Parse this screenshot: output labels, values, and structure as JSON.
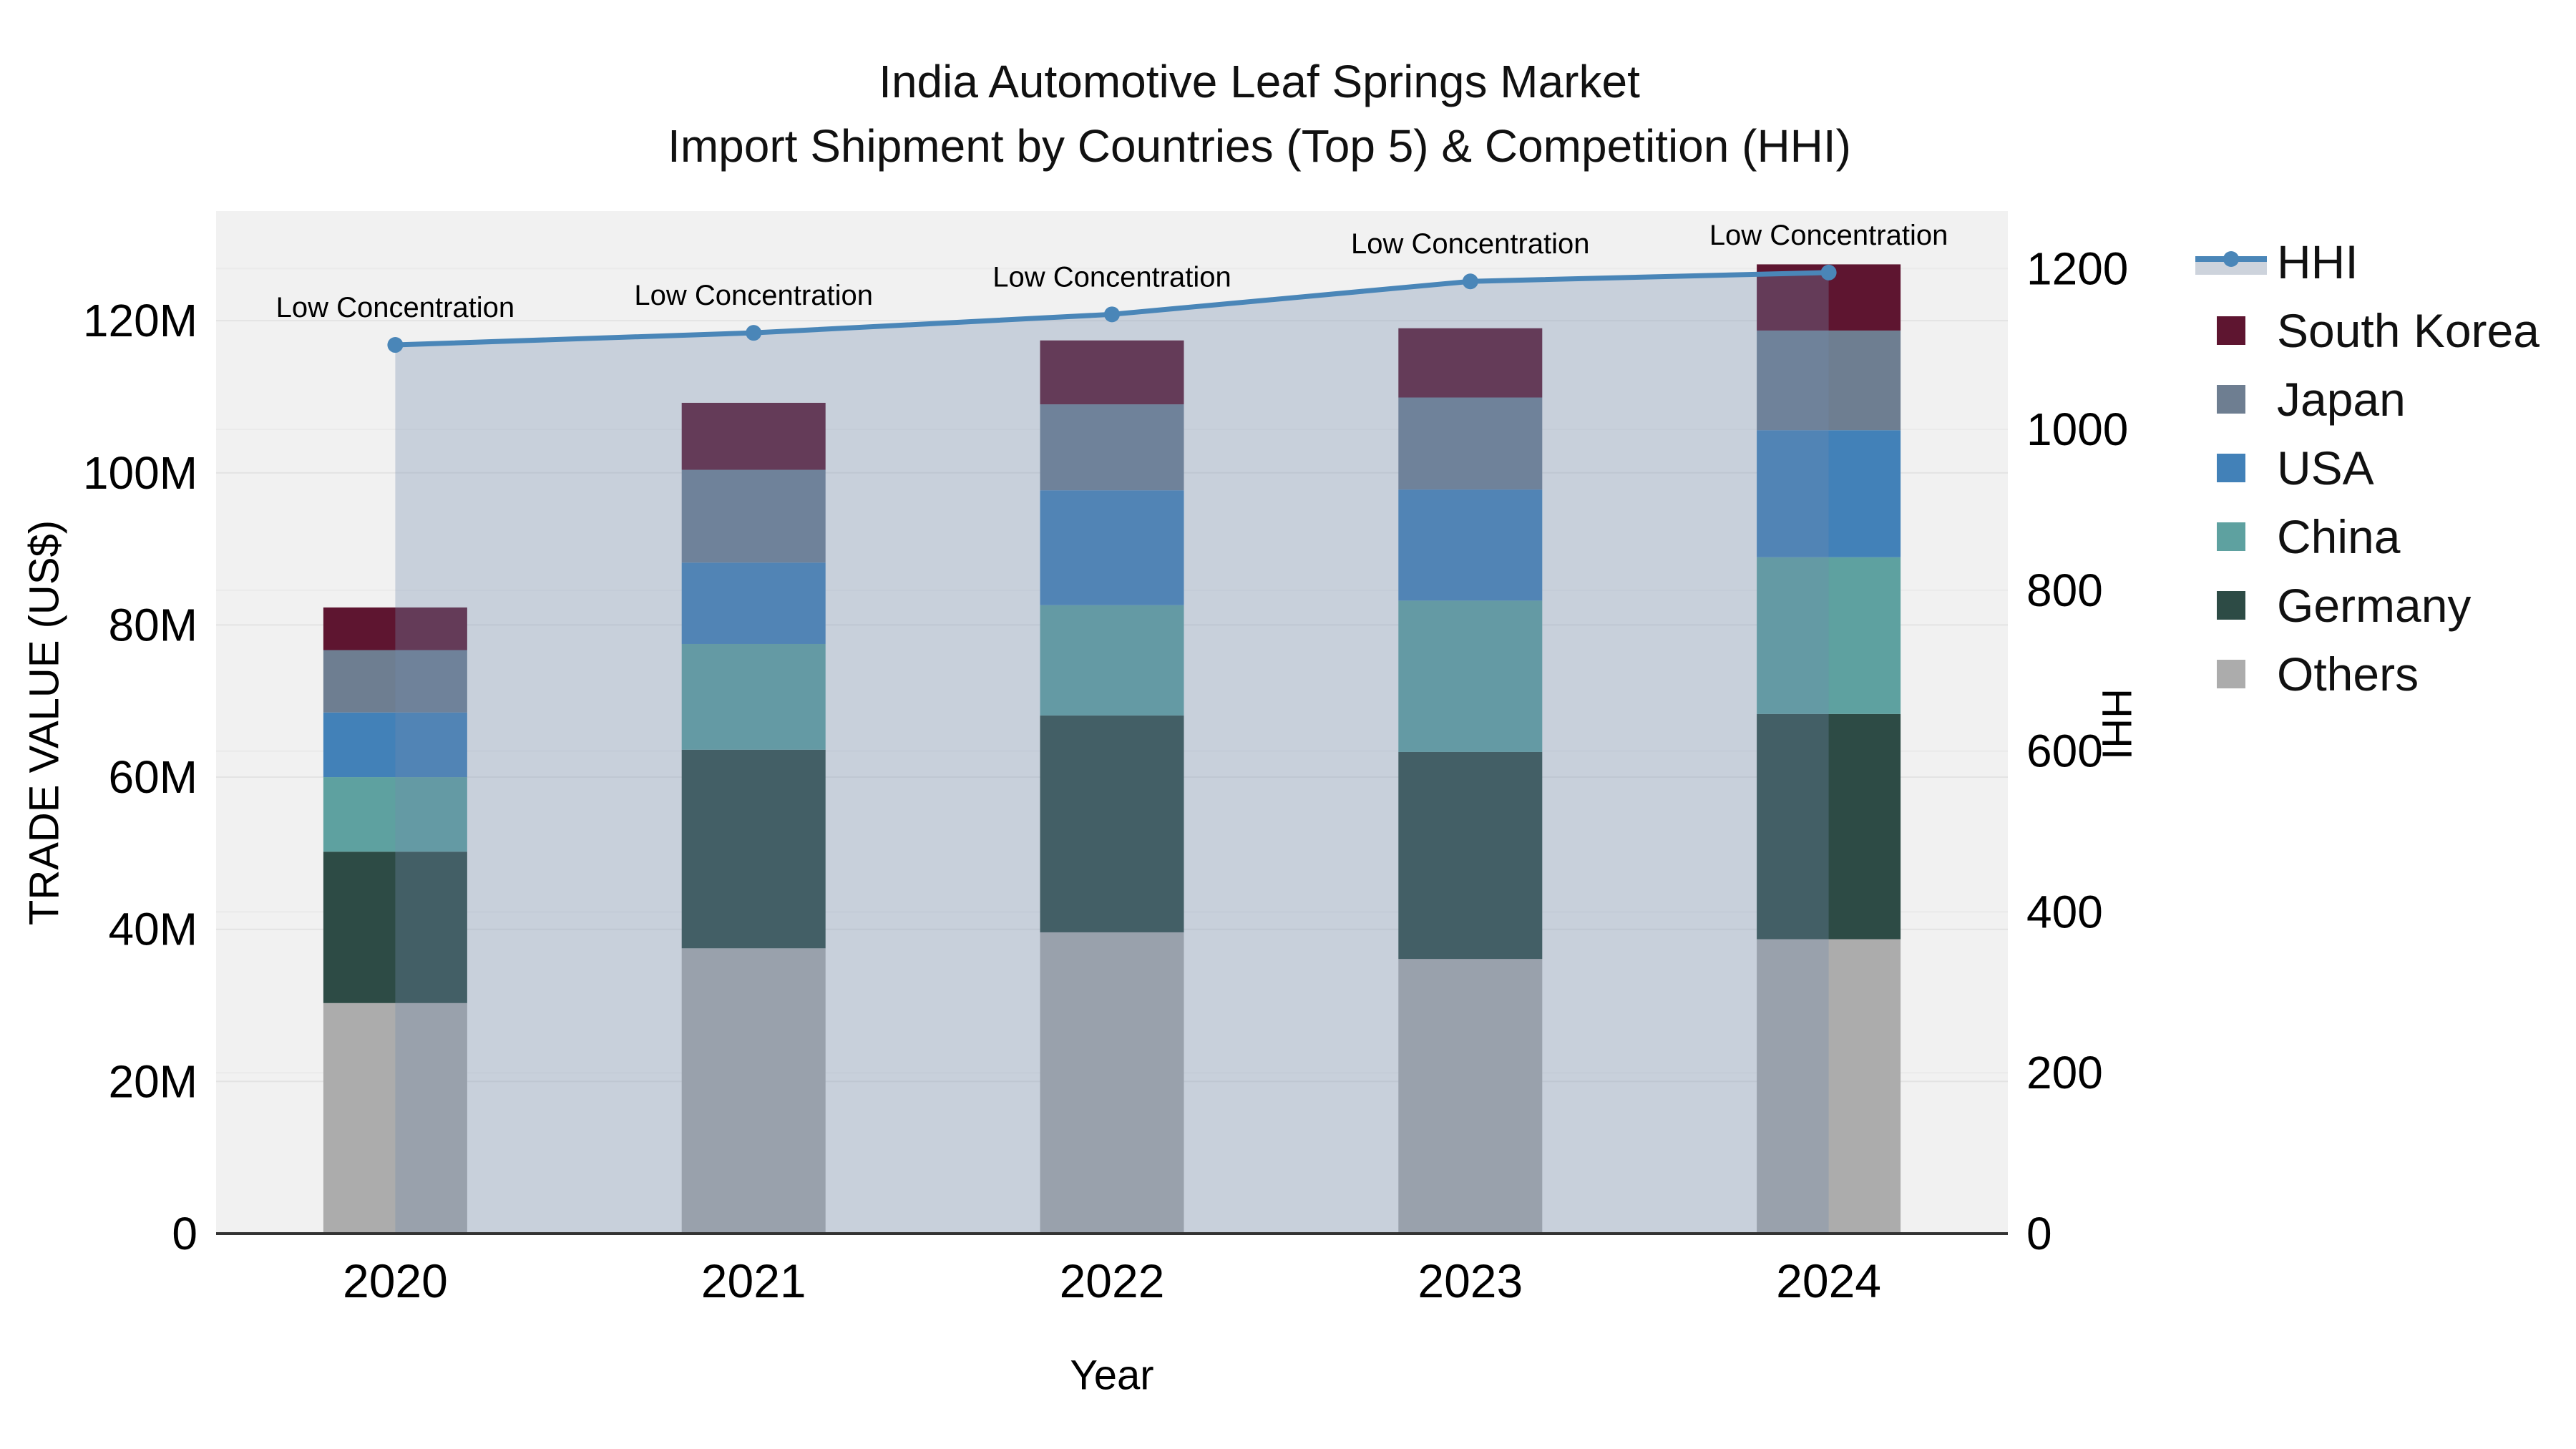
{
  "title": {
    "line1": "India Automotive Leaf Springs Market",
    "line2": "Import Shipment by Countries (Top 5) & Competition (HHI)"
  },
  "axes": {
    "x": {
      "title": "Year",
      "tick_labels": [
        "2020",
        "2021",
        "2022",
        "2023",
        "2024"
      ]
    },
    "y_left": {
      "title": "TRADE VALUE (US$)",
      "tick_labels": [
        "0",
        "20M",
        "40M",
        "60M",
        "80M",
        "100M",
        "120M"
      ],
      "tick_values_m": [
        0,
        20,
        40,
        60,
        80,
        100,
        120
      ]
    },
    "y_right": {
      "title": "HHI",
      "tick_labels": [
        "0",
        "200",
        "400",
        "600",
        "800",
        "1000",
        "1200"
      ],
      "tick_values": [
        0,
        200,
        400,
        600,
        800,
        1000,
        1200
      ]
    }
  },
  "chart_data": {
    "type": "bar+line",
    "categories": [
      "2020",
      "2021",
      "2022",
      "2023",
      "2024"
    ],
    "bar_unit": "million US$",
    "stack_order_bottom_to_top": [
      "Others",
      "Germany",
      "China",
      "USA",
      "Japan",
      "South Korea"
    ],
    "series": [
      {
        "name": "Others",
        "color": "#acacac",
        "values": [
          30.3,
          37.5,
          39.6,
          36.1,
          38.7
        ]
      },
      {
        "name": "Germany",
        "color": "#2d4b45",
        "values": [
          19.9,
          26.1,
          28.5,
          27.2,
          29.6
        ]
      },
      {
        "name": "China",
        "color": "#5ea1a0",
        "values": [
          9.8,
          13.9,
          14.5,
          19.9,
          20.6
        ]
      },
      {
        "name": "USA",
        "color": "#4281b8",
        "values": [
          8.5,
          10.7,
          15.1,
          14.6,
          16.7
        ]
      },
      {
        "name": "Japan",
        "color": "#6e7e91",
        "values": [
          8.2,
          12.2,
          11.3,
          12.1,
          13.1
        ]
      },
      {
        "name": "South Korea",
        "color": "#5e1530",
        "values": [
          5.6,
          8.8,
          8.4,
          9.1,
          8.7
        ]
      }
    ],
    "bar_totals_m": [
      82.3,
      109.2,
      117.4,
      119.0,
      127.4
    ],
    "line_series": {
      "name": "HHI",
      "color": "#4a86b8",
      "area_fill_color": "rgba(116,141,175,0.32)",
      "values": [
        1105,
        1120,
        1143,
        1184,
        1195
      ]
    },
    "annotations": [
      "Low Concentration",
      "Low Concentration",
      "Low Concentration",
      "Low Concentration",
      "Low Concentration"
    ],
    "ylim_left_m": [
      0,
      134.4
    ],
    "ylim_right": [
      0,
      1271.4
    ],
    "grid": true,
    "legend_position": "right"
  },
  "legend": {
    "items": [
      {
        "label": "HHI",
        "type": "line",
        "color": "#4a86b8"
      },
      {
        "label": "South Korea",
        "type": "swatch",
        "color": "#5e1530"
      },
      {
        "label": "Japan",
        "type": "swatch",
        "color": "#6e7e91"
      },
      {
        "label": "USA",
        "type": "swatch",
        "color": "#4281b8"
      },
      {
        "label": "China",
        "type": "swatch",
        "color": "#5ea1a0"
      },
      {
        "label": "Germany",
        "type": "swatch",
        "color": "#2d4b45"
      },
      {
        "label": "Others",
        "type": "swatch",
        "color": "#acacac"
      }
    ]
  },
  "colors": {
    "plot_background": "#f1f1f1",
    "grid_left": "#e3e3e3",
    "grid_right": "#eaeaea",
    "axis_line": "#333333",
    "text": "#000000",
    "hhi_line": "#4a86b8",
    "area_overlay": "rgba(116,141,175,0.32)"
  }
}
